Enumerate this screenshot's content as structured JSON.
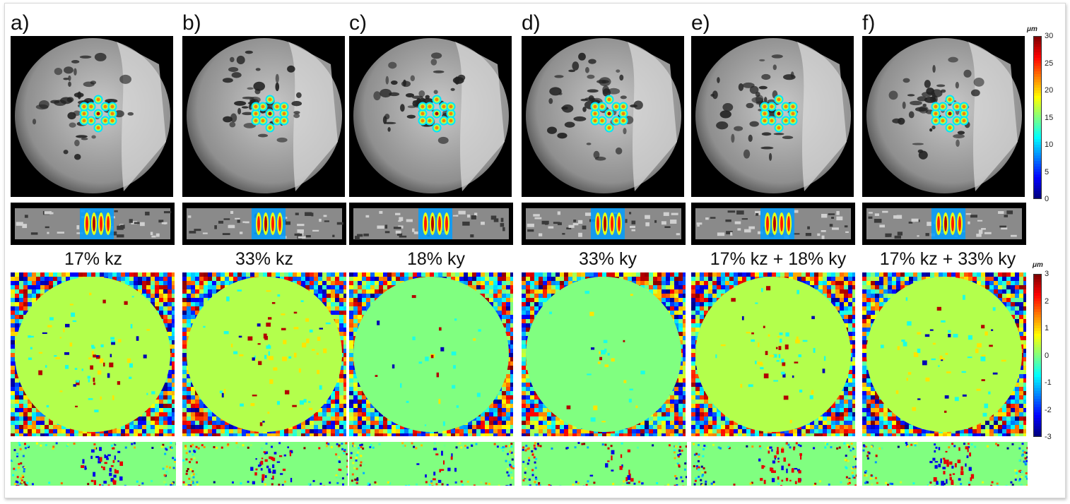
{
  "figure": {
    "panel_labels": [
      "a)",
      "b)",
      "c)",
      "d)",
      "e)",
      "f)"
    ],
    "conditions": [
      "17% kz",
      "33% kz",
      "18% ky",
      "33% ky",
      "17% kz + 18% ky",
      "17% kz + 33% ky"
    ],
    "colorbar_top": {
      "unit": "μm",
      "ticks": [
        "30",
        "25",
        "20",
        "15",
        "10",
        "5",
        "0"
      ],
      "range": [
        0,
        30
      ]
    },
    "colorbar_bottom": {
      "unit": "μm",
      "ticks": [
        "3",
        "2",
        "1",
        "0",
        "-1",
        "-2",
        "-3"
      ],
      "range": [
        -3,
        3
      ]
    },
    "colors": {
      "jet_dark_blue": "#000080",
      "jet_blue": "#0000ff",
      "jet_cyan": "#00ffff",
      "jet_green": "#7fff7f",
      "jet_yellow": "#ffff00",
      "jet_red": "#ff0000",
      "jet_dark_red": "#800000",
      "background": "#000000"
    }
  }
}
